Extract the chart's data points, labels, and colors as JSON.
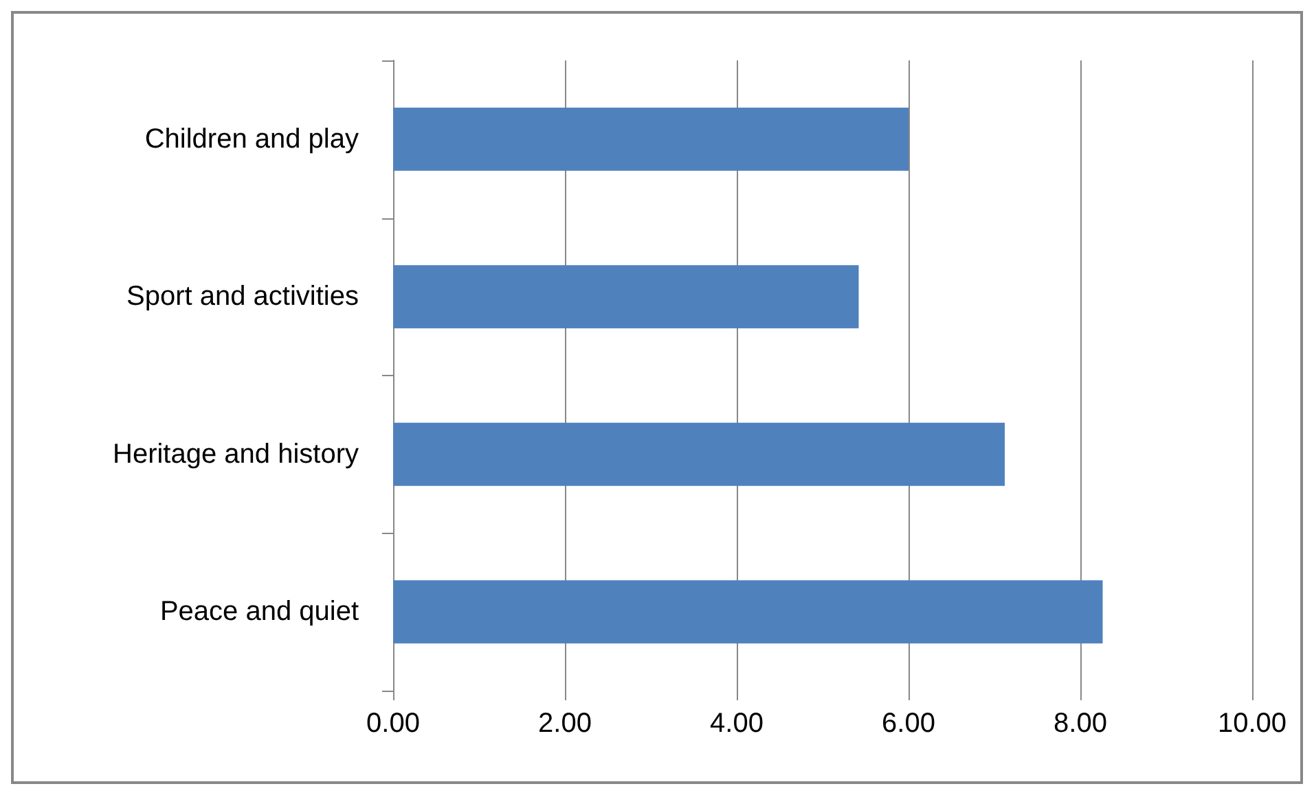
{
  "chart_data": {
    "type": "bar",
    "orientation": "horizontal",
    "categories": [
      "Children and play",
      "Sport and activities",
      "Heritage and history",
      "Peace and quiet"
    ],
    "values": [
      6.0,
      5.42,
      7.12,
      8.26
    ],
    "color": "#4f81bd",
    "xlim": [
      0,
      10
    ],
    "xticks": [
      {
        "value": 0,
        "label": "0.00"
      },
      {
        "value": 2,
        "label": "2.00"
      },
      {
        "value": 4,
        "label": "4.00"
      },
      {
        "value": 6,
        "label": "6.00"
      },
      {
        "value": 8,
        "label": "8.00"
      },
      {
        "value": 10,
        "label": "10.00"
      }
    ],
    "grid": "x"
  }
}
